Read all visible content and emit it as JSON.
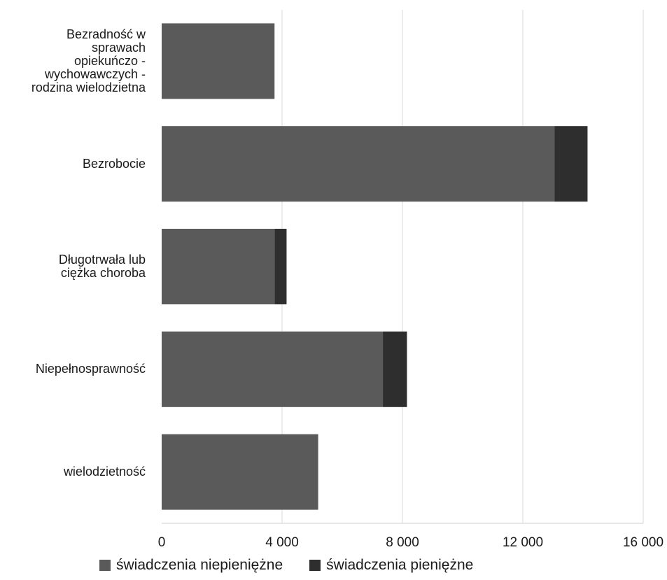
{
  "chart_data": {
    "type": "bar",
    "orientation": "horizontal",
    "stacked": true,
    "categories": [
      "Bezradność w\nsprawach\nopiekuńczo -\nwychowawczych -\nrodzina wielodzietna",
      "Bezrobocie",
      "Długotrwała lub\nciężka choroba",
      "Niepełnosprawność",
      "wielodzietność"
    ],
    "series": [
      {
        "name": "świadczenia niepieniężne",
        "color": "#5a5a5a",
        "values": [
          3750,
          13050,
          3750,
          7350,
          5200
        ]
      },
      {
        "name": "świadczenia pieniężne",
        "color": "#2e2e2e",
        "values": [
          0,
          1100,
          400,
          800,
          0
        ]
      }
    ],
    "xlim": [
      0,
      16000
    ],
    "xticks": [
      0,
      4000,
      8000,
      12000,
      16000
    ],
    "xtick_labels": [
      "0",
      "4 000",
      "8 000",
      "12 000",
      "16 000"
    ],
    "grid": true,
    "legend_position": "bottom"
  }
}
